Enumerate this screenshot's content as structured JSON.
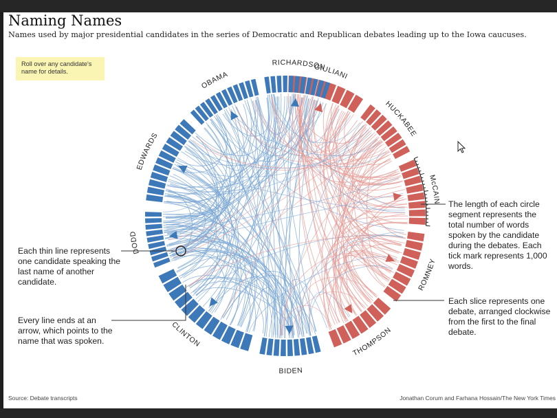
{
  "title": "Naming Names",
  "subtitle": "Names used by major presidential candidates in the series of Democratic and Republican debates leading up to the Iowa caucuses.",
  "rollover_note": "Roll over any candidate's name for details.",
  "annotations": {
    "segment_length": "The length of each circle segment represents the total number of words spoken by the candidate during the debates. Each tick mark represents 1,000 words.",
    "slice": "Each slice represents one debate, arranged clockwise from the first to the final debate.",
    "thin_line": "Each thin line represents one candidate speaking the last name of another candidate.",
    "arrow": "Every line ends at an arrow, which points to the name that was spoken."
  },
  "source": "Source: Debate transcripts",
  "credit": "Jonathan Corum and Farhana Hossain/The New York Times",
  "colors": {
    "democrat": "#3d79b8",
    "republican": "#d0605a",
    "democrat_line": "#7aa5d2",
    "republican_line": "#e39a94",
    "note_bg": "#fbf5b4"
  },
  "cursor_icon": "arrow-cursor-icon",
  "candidates": [
    {
      "name": "GIULIANI",
      "party": "republican",
      "slices": 8
    },
    {
      "name": "HUCKABEE",
      "party": "republican",
      "slices": 8
    },
    {
      "name": "McCAIN",
      "party": "republican",
      "slices": 8
    },
    {
      "name": "ROMNEY",
      "party": "republican",
      "slices": 8
    },
    {
      "name": "THOMPSON",
      "party": "republican",
      "slices": 7
    },
    {
      "name": "BIDEN",
      "party": "democrat",
      "slices": 9
    },
    {
      "name": "CLINTON",
      "party": "democrat",
      "slices": 12
    },
    {
      "name": "DODD",
      "party": "democrat",
      "slices": 9
    },
    {
      "name": "EDWARDS",
      "party": "democrat",
      "slices": 12
    },
    {
      "name": "OBAMA",
      "party": "democrat",
      "slices": 12
    },
    {
      "name": "RICHARDSON",
      "party": "democrat",
      "slices": 11
    }
  ]
}
